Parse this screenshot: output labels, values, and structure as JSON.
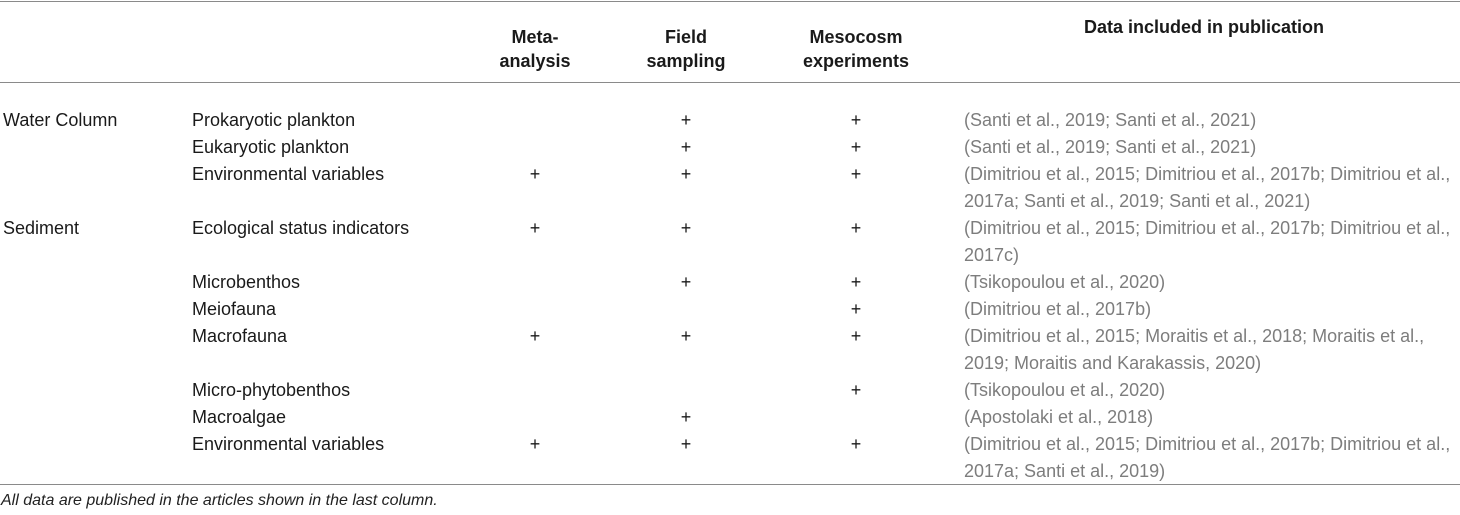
{
  "headers": {
    "col_meta": "Meta-\nanalysis",
    "col_field": "Field\nsampling",
    "col_meso": "Mesocosm\nexperiments",
    "col_pub": "Data included in publication"
  },
  "rows": [
    {
      "category": "Water Column",
      "variable": "Prokaryotic plankton",
      "meta": "",
      "field": "+",
      "meso": "+",
      "pub": "(Santi et al., 2019; Santi et al., 2021)"
    },
    {
      "category": "",
      "variable": "Eukaryotic plankton",
      "meta": "",
      "field": "+",
      "meso": "+",
      "pub": "(Santi et al., 2019; Santi et al., 2021)"
    },
    {
      "category": "",
      "variable": "Environmental variables",
      "meta": "+",
      "field": "+",
      "meso": "+",
      "pub": "(Dimitriou et al., 2015; Dimitriou et al., 2017b; Dimitriou et al., 2017a; Santi et al., 2019; Santi et al., 2021)"
    },
    {
      "category": "Sediment",
      "variable": "Ecological status indicators",
      "meta": "+",
      "field": "+",
      "meso": "+",
      "pub": "(Dimitriou et al., 2015; Dimitriou et al., 2017b; Dimitriou et al., 2017c)"
    },
    {
      "category": "",
      "variable": "Microbenthos",
      "meta": "",
      "field": "+",
      "meso": "+",
      "pub": "(Tsikopoulou et al., 2020)"
    },
    {
      "category": "",
      "variable": "Meiofauna",
      "meta": "",
      "field": "",
      "meso": "+",
      "pub": "(Dimitriou et al., 2017b)"
    },
    {
      "category": "",
      "variable": "Macrofauna",
      "meta": "+",
      "field": "+",
      "meso": "+",
      "pub": "(Dimitriou et al., 2015; Moraitis et al., 2018; Moraitis et al., 2019; Moraitis and Karakassis, 2020)"
    },
    {
      "category": "",
      "variable": "Micro-phytobenthos",
      "meta": "",
      "field": "",
      "meso": "+",
      "pub": "(Tsikopoulou et al., 2020)"
    },
    {
      "category": "",
      "variable": "Macroalgae",
      "meta": "",
      "field": "+",
      "meso": "",
      "pub": "(Apostolaki et al., 2018)"
    },
    {
      "category": "",
      "variable": "Environmental variables",
      "meta": "+",
      "field": "+",
      "meso": "+",
      "pub": "(Dimitriou et al., 2015; Dimitriou et al., 2017b; Dimitriou et al., 2017a; Santi et al., 2019)"
    }
  ],
  "footnote": "All data are published in the articles shown in the last column."
}
